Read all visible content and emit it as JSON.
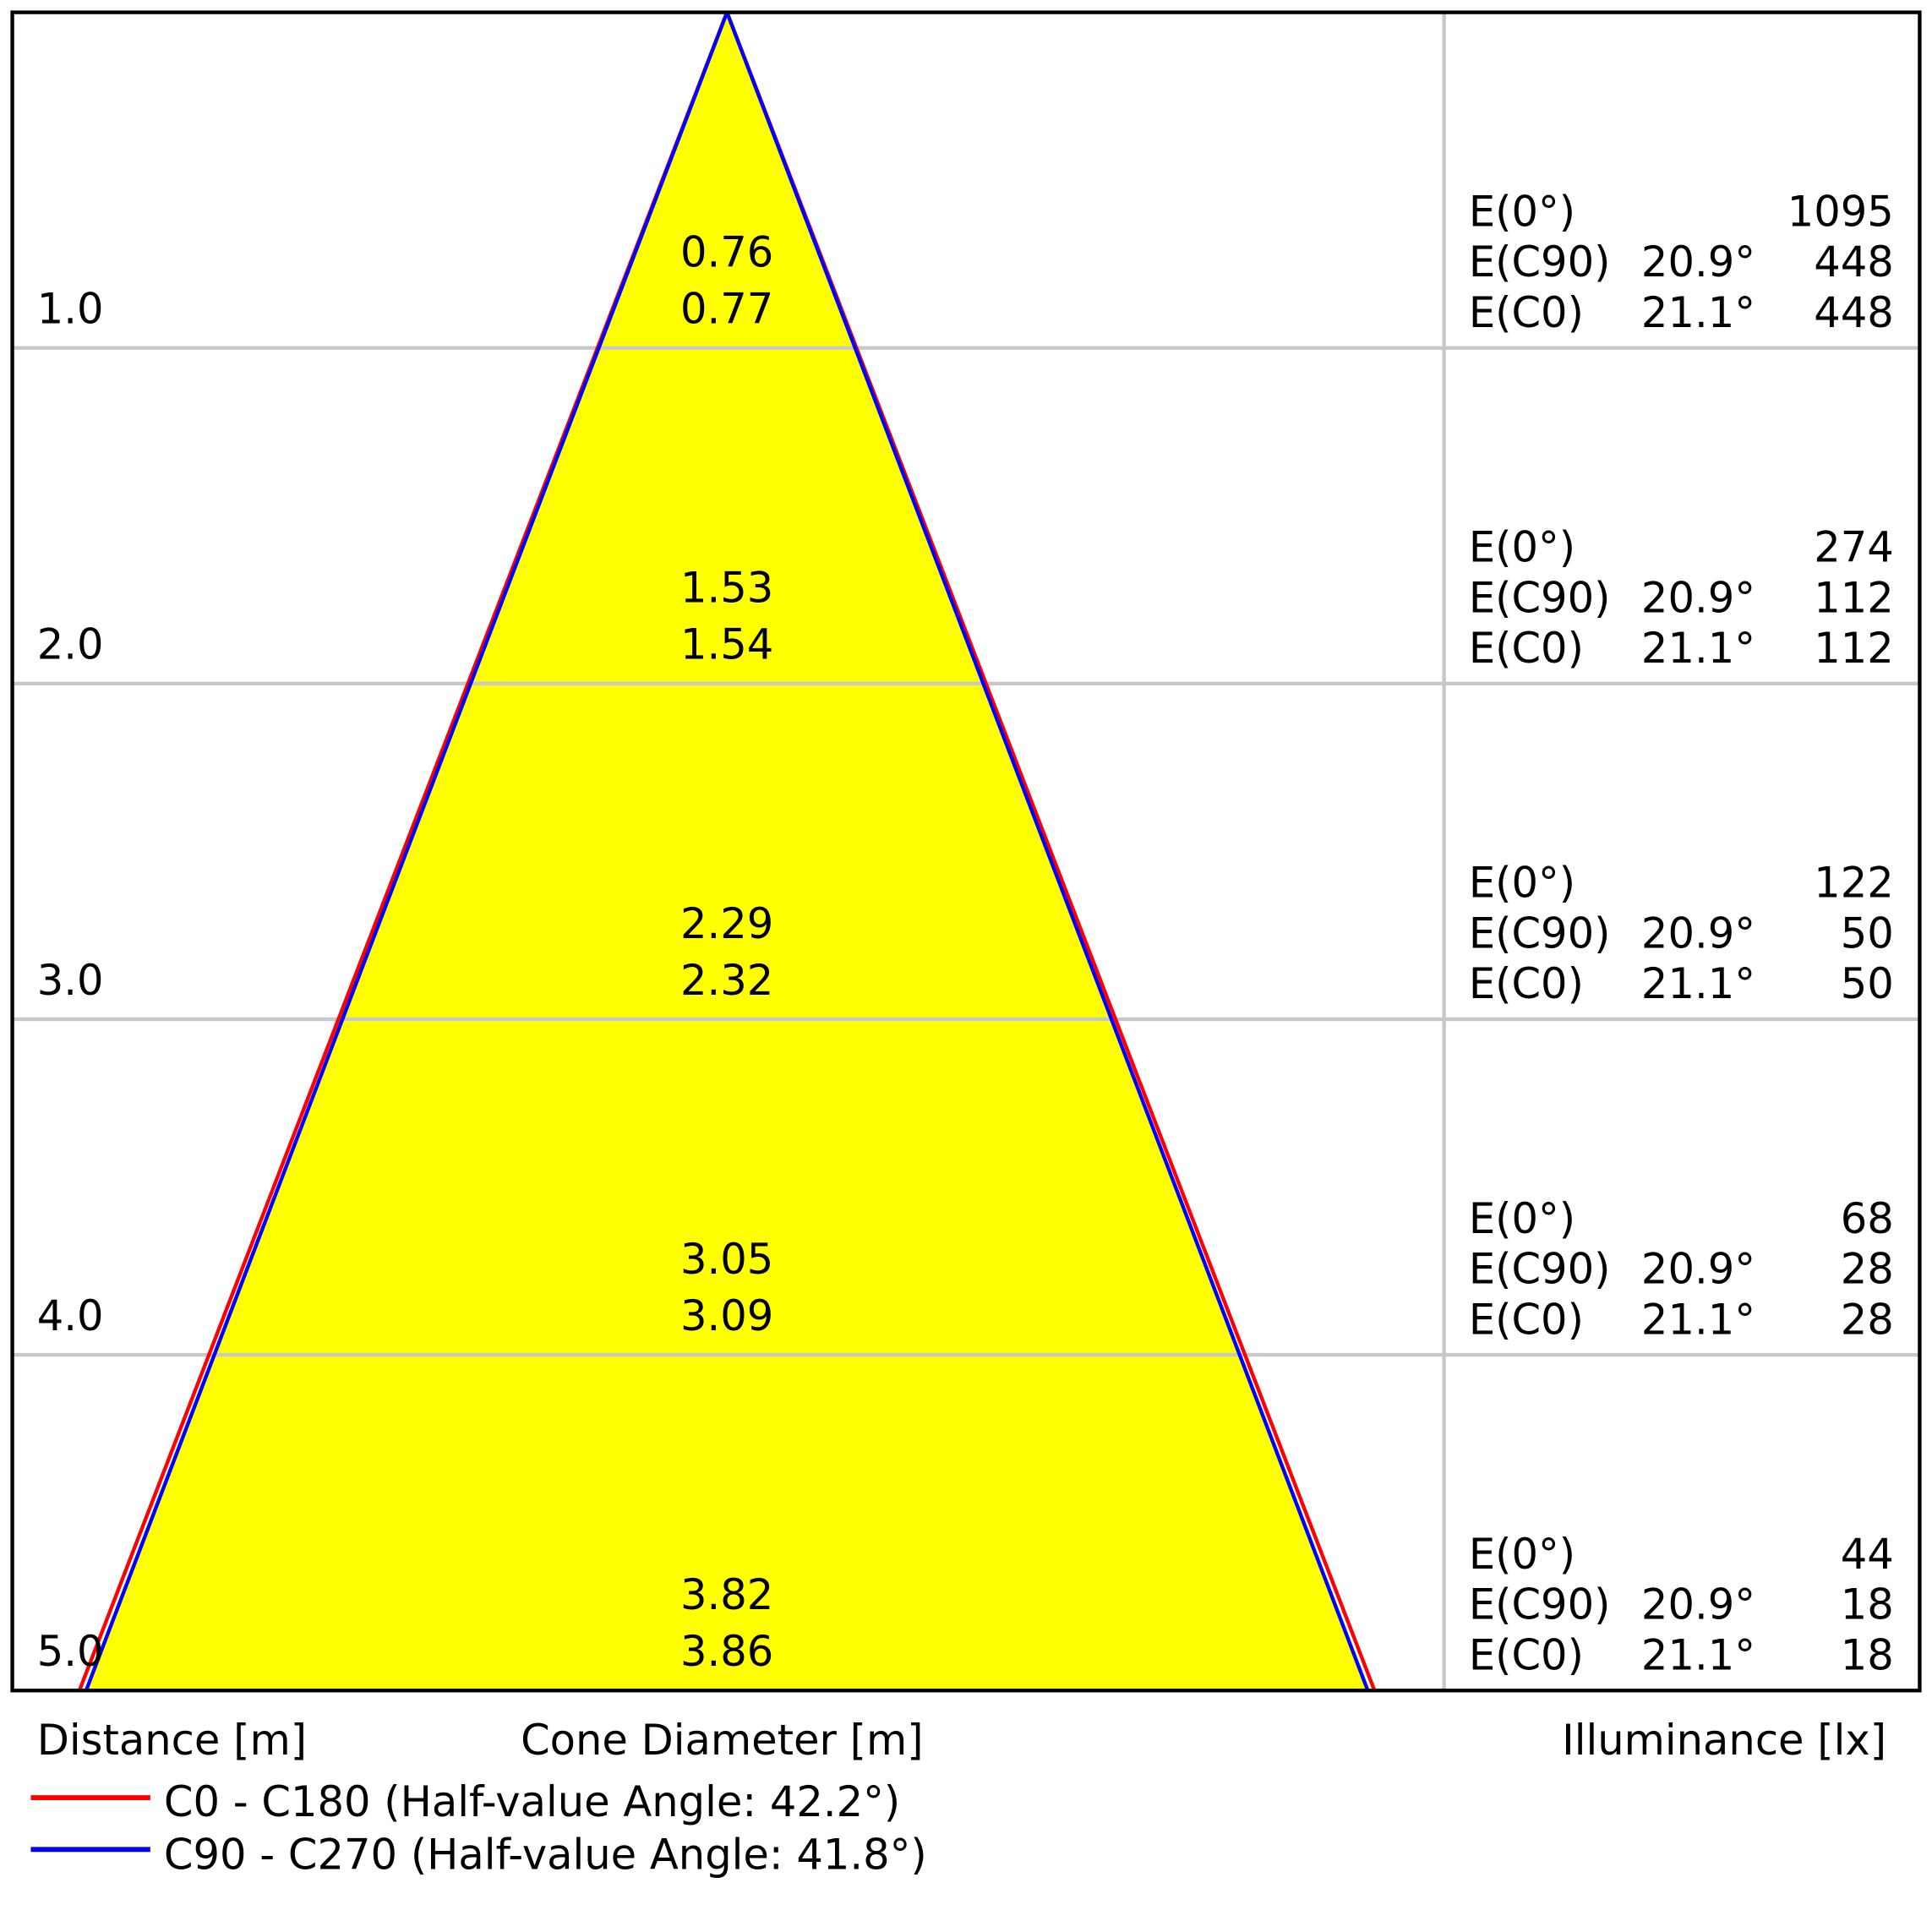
{
  "chart_data": {
    "type": "cone-diagram",
    "xlabel_left": "Distance [m]",
    "xlabel_center": "Cone Diameter [m]",
    "xlabel_right": "Illuminance [lx]",
    "distance_range": [
      0,
      5
    ],
    "grid": true,
    "fill_color": "#ffff00",
    "series": [
      {
        "name": "C0 - C180 (Half-value Angle: 42.2°)",
        "color": "#ff0000",
        "half_value_angle": 42.2
      },
      {
        "name": "C90 - C270 (Half-value Angle: 41.8°)",
        "color": "#0000ff",
        "half_value_angle": 41.8
      }
    ],
    "rows": [
      {
        "distance": "1.0",
        "d": 1.0,
        "diam_c90": "0.76",
        "diam_c0": "0.77",
        "e0_label": "E(0°)",
        "e0": "1095",
        "ec90_label": "E(C90)",
        "ec90_angle": "20.9°",
        "ec90": "448",
        "ec0_label": "E(C0)",
        "ec0_angle": "21.1°",
        "ec0": "448"
      },
      {
        "distance": "2.0",
        "d": 2.0,
        "diam_c90": "1.53",
        "diam_c0": "1.54",
        "e0_label": "E(0°)",
        "e0": "274",
        "ec90_label": "E(C90)",
        "ec90_angle": "20.9°",
        "ec90": "112",
        "ec0_label": "E(C0)",
        "ec0_angle": "21.1°",
        "ec0": "112"
      },
      {
        "distance": "3.0",
        "d": 3.0,
        "diam_c90": "2.29",
        "diam_c0": "2.32",
        "e0_label": "E(0°)",
        "e0": "122",
        "ec90_label": "E(C90)",
        "ec90_angle": "20.9°",
        "ec90": "50",
        "ec0_label": "E(C0)",
        "ec0_angle": "21.1°",
        "ec0": "50"
      },
      {
        "distance": "4.0",
        "d": 4.0,
        "diam_c90": "3.05",
        "diam_c0": "3.09",
        "e0_label": "E(0°)",
        "e0": "68",
        "ec90_label": "E(C90)",
        "ec90_angle": "20.9°",
        "ec90": "28",
        "ec0_label": "E(C0)",
        "ec0_angle": "21.1°",
        "ec0": "28"
      },
      {
        "distance": "5.0",
        "d": 5.0,
        "diam_c90": "3.82",
        "diam_c0": "3.86",
        "e0_label": "E(0°)",
        "e0": "44",
        "ec90_label": "E(C90)",
        "ec90_angle": "20.9°",
        "ec90": "18",
        "ec0_label": "E(C0)",
        "ec0_angle": "21.1°",
        "ec0": "18"
      }
    ]
  }
}
